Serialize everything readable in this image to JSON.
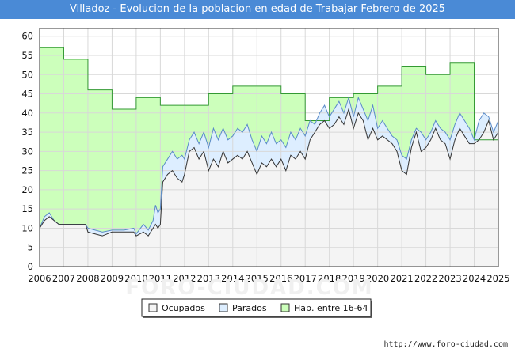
{
  "chart_data": {
    "type": "area",
    "title": "Villadoz - Evolucion de la poblacion en edad de Trabajar Febrero de 2025",
    "xlabel": "",
    "ylabel": "",
    "xlim": [
      2006,
      2025
    ],
    "ylim": [
      0,
      62
    ],
    "yticks": [
      0,
      5,
      10,
      15,
      20,
      25,
      30,
      35,
      40,
      45,
      50,
      55,
      60
    ],
    "xticks": [
      "2006",
      "2007",
      "2008",
      "2009",
      "2010",
      "2011",
      "2012",
      "2013",
      "2014",
      "2015",
      "2016",
      "2017",
      "2018",
      "2019",
      "2020",
      "2021",
      "2022",
      "2023",
      "2024",
      "2025"
    ],
    "grid": true,
    "legend_position": "bottom-center",
    "watermark": "FORO-CIUDAD.COM",
    "footer": "http://www.foro-ciudad.com",
    "colors": {
      "ocupados_fill": "#f4f4f4",
      "ocupados_line": "#333333",
      "parados_fill": "#ddeeff",
      "parados_line": "#5a8ac8",
      "hab_fill": "#ccffbb",
      "hab_line": "#339933",
      "title_bg": "#4a8ad6"
    },
    "series": [
      {
        "name": "Hab. entre 16-64",
        "step": true,
        "points": [
          [
            2006,
            57
          ],
          [
            2007,
            54
          ],
          [
            2008,
            46
          ],
          [
            2009,
            41
          ],
          [
            2010,
            44
          ],
          [
            2011,
            42
          ],
          [
            2013,
            45
          ],
          [
            2014,
            47
          ],
          [
            2016,
            45
          ],
          [
            2017,
            38
          ],
          [
            2018,
            44
          ],
          [
            2019,
            45
          ],
          [
            2020,
            47
          ],
          [
            2021,
            52
          ],
          [
            2022,
            50
          ],
          [
            2023,
            53
          ],
          [
            2024,
            33
          ],
          [
            2025,
            34
          ]
        ]
      },
      {
        "name": "Parados",
        "points": [
          [
            2006,
            10
          ],
          [
            2006.2,
            13
          ],
          [
            2006.4,
            14
          ],
          [
            2006.6,
            12
          ],
          [
            2006.8,
            11
          ],
          [
            2007,
            11
          ],
          [
            2007.5,
            11
          ],
          [
            2007.9,
            11
          ],
          [
            2008,
            10
          ],
          [
            2008.3,
            9.5
          ],
          [
            2008.6,
            9
          ],
          [
            2009,
            9.5
          ],
          [
            2009.5,
            9.5
          ],
          [
            2009.9,
            10
          ],
          [
            2010,
            8.5
          ],
          [
            2010.3,
            11
          ],
          [
            2010.5,
            9.5
          ],
          [
            2010.7,
            12
          ],
          [
            2010.8,
            16
          ],
          [
            2010.9,
            14
          ],
          [
            2011,
            15
          ],
          [
            2011.1,
            26
          ],
          [
            2011.3,
            28
          ],
          [
            2011.5,
            30
          ],
          [
            2011.7,
            28
          ],
          [
            2011.9,
            29
          ],
          [
            2012,
            28
          ],
          [
            2012.2,
            33
          ],
          [
            2012.4,
            35
          ],
          [
            2012.6,
            32
          ],
          [
            2012.8,
            35
          ],
          [
            2013,
            31
          ],
          [
            2013.2,
            36
          ],
          [
            2013.4,
            33
          ],
          [
            2013.6,
            36
          ],
          [
            2013.8,
            33
          ],
          [
            2014,
            34
          ],
          [
            2014.2,
            36
          ],
          [
            2014.4,
            35
          ],
          [
            2014.6,
            37
          ],
          [
            2014.8,
            33
          ],
          [
            2015,
            30
          ],
          [
            2015.2,
            34
          ],
          [
            2015.4,
            32
          ],
          [
            2015.6,
            35
          ],
          [
            2015.8,
            32
          ],
          [
            2016,
            33
          ],
          [
            2016.2,
            31
          ],
          [
            2016.4,
            35
          ],
          [
            2016.6,
            33
          ],
          [
            2016.8,
            36
          ],
          [
            2017,
            34
          ],
          [
            2017.2,
            38
          ],
          [
            2017.4,
            37
          ],
          [
            2017.6,
            40
          ],
          [
            2017.8,
            42
          ],
          [
            2018,
            39
          ],
          [
            2018.2,
            41
          ],
          [
            2018.4,
            43
          ],
          [
            2018.6,
            40
          ],
          [
            2018.8,
            44
          ],
          [
            2019,
            39
          ],
          [
            2019.2,
            44
          ],
          [
            2019.4,
            41
          ],
          [
            2019.6,
            38
          ],
          [
            2019.8,
            42
          ],
          [
            2020,
            36
          ],
          [
            2020.2,
            38
          ],
          [
            2020.4,
            36
          ],
          [
            2020.6,
            34
          ],
          [
            2020.8,
            33
          ],
          [
            2021,
            29
          ],
          [
            2021.2,
            28
          ],
          [
            2021.4,
            33
          ],
          [
            2021.6,
            36
          ],
          [
            2021.8,
            35
          ],
          [
            2022,
            33
          ],
          [
            2022.2,
            35
          ],
          [
            2022.4,
            38
          ],
          [
            2022.6,
            36
          ],
          [
            2022.8,
            35
          ],
          [
            2023,
            33
          ],
          [
            2023.2,
            37
          ],
          [
            2023.4,
            40
          ],
          [
            2023.6,
            38
          ],
          [
            2023.8,
            36
          ],
          [
            2024,
            33
          ],
          [
            2024.2,
            38
          ],
          [
            2024.4,
            40
          ],
          [
            2024.6,
            39
          ],
          [
            2024.8,
            35
          ],
          [
            2025,
            38
          ]
        ]
      },
      {
        "name": "Ocupados",
        "points": [
          [
            2006,
            10
          ],
          [
            2006.2,
            12
          ],
          [
            2006.4,
            13
          ],
          [
            2006.6,
            12
          ],
          [
            2006.8,
            11
          ],
          [
            2007,
            11
          ],
          [
            2007.5,
            11
          ],
          [
            2007.9,
            11
          ],
          [
            2008,
            9
          ],
          [
            2008.3,
            8.5
          ],
          [
            2008.6,
            8
          ],
          [
            2009,
            9
          ],
          [
            2009.5,
            9
          ],
          [
            2009.9,
            9
          ],
          [
            2010,
            8
          ],
          [
            2010.3,
            9
          ],
          [
            2010.5,
            8
          ],
          [
            2010.7,
            10
          ],
          [
            2010.8,
            11
          ],
          [
            2010.9,
            10
          ],
          [
            2011,
            11
          ],
          [
            2011.1,
            22
          ],
          [
            2011.3,
            24
          ],
          [
            2011.5,
            25
          ],
          [
            2011.7,
            23
          ],
          [
            2011.9,
            22
          ],
          [
            2012,
            24
          ],
          [
            2012.2,
            30
          ],
          [
            2012.4,
            31
          ],
          [
            2012.6,
            28
          ],
          [
            2012.8,
            30
          ],
          [
            2013,
            25
          ],
          [
            2013.2,
            28
          ],
          [
            2013.4,
            26
          ],
          [
            2013.6,
            30
          ],
          [
            2013.8,
            27
          ],
          [
            2014,
            28
          ],
          [
            2014.2,
            29
          ],
          [
            2014.4,
            28
          ],
          [
            2014.6,
            30
          ],
          [
            2014.8,
            27
          ],
          [
            2015,
            24
          ],
          [
            2015.2,
            27
          ],
          [
            2015.4,
            26
          ],
          [
            2015.6,
            28
          ],
          [
            2015.8,
            26
          ],
          [
            2016,
            28
          ],
          [
            2016.2,
            25
          ],
          [
            2016.4,
            29
          ],
          [
            2016.6,
            28
          ],
          [
            2016.8,
            30
          ],
          [
            2017,
            28
          ],
          [
            2017.2,
            33
          ],
          [
            2017.4,
            35
          ],
          [
            2017.6,
            37
          ],
          [
            2017.8,
            38
          ],
          [
            2018,
            36
          ],
          [
            2018.2,
            37
          ],
          [
            2018.4,
            39
          ],
          [
            2018.6,
            37
          ],
          [
            2018.8,
            41
          ],
          [
            2019,
            36
          ],
          [
            2019.2,
            40
          ],
          [
            2019.4,
            38
          ],
          [
            2019.6,
            33
          ],
          [
            2019.8,
            36
          ],
          [
            2020,
            33
          ],
          [
            2020.2,
            34
          ],
          [
            2020.4,
            33
          ],
          [
            2020.6,
            32
          ],
          [
            2020.8,
            30
          ],
          [
            2021,
            25
          ],
          [
            2021.2,
            24
          ],
          [
            2021.4,
            31
          ],
          [
            2021.6,
            35
          ],
          [
            2021.8,
            30
          ],
          [
            2022,
            31
          ],
          [
            2022.2,
            33
          ],
          [
            2022.4,
            36
          ],
          [
            2022.6,
            33
          ],
          [
            2022.8,
            32
          ],
          [
            2023,
            28
          ],
          [
            2023.2,
            33
          ],
          [
            2023.4,
            36
          ],
          [
            2023.6,
            34
          ],
          [
            2023.8,
            32
          ],
          [
            2024,
            32
          ],
          [
            2024.2,
            33
          ],
          [
            2024.4,
            35
          ],
          [
            2024.6,
            38
          ],
          [
            2024.8,
            33
          ],
          [
            2025,
            35
          ]
        ]
      }
    ]
  }
}
